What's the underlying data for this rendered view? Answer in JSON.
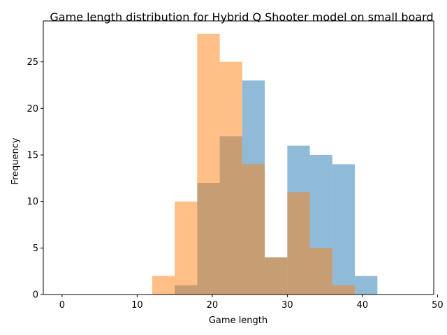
{
  "chart_data": {
    "type": "bar",
    "title": "Game length distribution for Hybrid Q Shooter model on small board",
    "xlabel": "Game length",
    "ylabel": "Frequency",
    "xlim": [
      -2.5,
      49.5
    ],
    "ylim": [
      0,
      29.4
    ],
    "xticks": [
      0,
      10,
      20,
      30,
      40,
      50
    ],
    "yticks": [
      0,
      5,
      10,
      15,
      20,
      25
    ],
    "grid": false,
    "legend": "none",
    "bin_edges": [
      12,
      15,
      18,
      21,
      24,
      27,
      30,
      33,
      36,
      39
    ],
    "series": [
      {
        "color": "#1f77b4",
        "opacity": 0.5,
        "values": [
          0,
          1,
          12,
          17,
          23,
          4,
          16,
          15,
          14,
          2
        ]
      },
      {
        "color": "#ff7f0e",
        "opacity": 0.5,
        "values": [
          2,
          10,
          28,
          25,
          14,
          4,
          11,
          5,
          1,
          0
        ]
      }
    ]
  }
}
